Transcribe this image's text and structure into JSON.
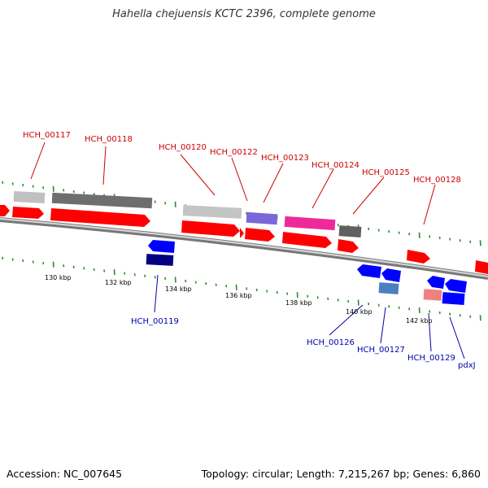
{
  "header": {
    "title": "Hahella chejuensis KCTC 2396, complete genome"
  },
  "footer": {
    "accession": "Accession: NC_007645",
    "summary": "Topology: circular; Length: 7,215,267 bp; Genes: 6,860"
  },
  "colors": {
    "plus_gene": "#ff0000",
    "minus_gene": "#0000ff",
    "plus_label": "#cc0000",
    "minus_label": "#0000aa",
    "tick": "#2e8b2e",
    "backbone": "#999999"
  },
  "ruler": {
    "labels": [
      "130 kbp",
      "132 kbp",
      "134 kbp",
      "136 kbp",
      "138 kbp",
      "140 kbp",
      "142 kbp"
    ]
  },
  "plus_strand_labels": [
    "HCH_00117",
    "HCH_00118",
    "HCH_00120",
    "HCH_00122",
    "HCH_00123",
    "HCH_00124",
    "HCH_00125",
    "HCH_00128"
  ],
  "minus_strand_labels": [
    "HCH_00119",
    "HCH_00126",
    "HCH_00127",
    "HCH_00129",
    "pdxJ"
  ]
}
